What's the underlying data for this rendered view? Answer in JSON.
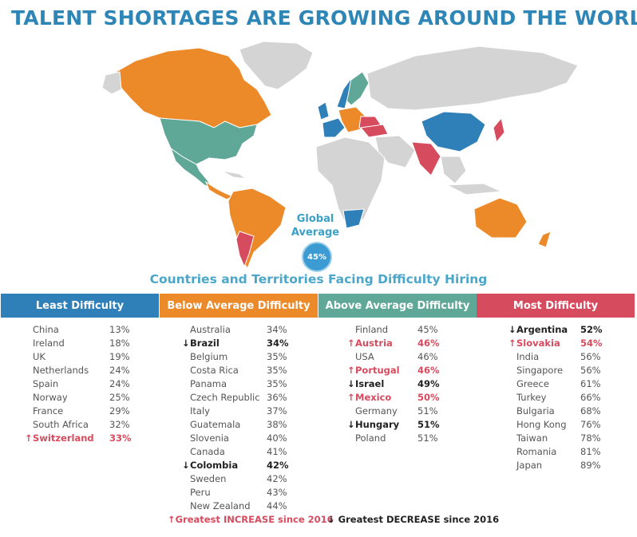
{
  "title": "TALENT SHORTAGES ARE GROWING AROUND THE WORLD",
  "global": {
    "line1": "Global",
    "line2": "Average",
    "value": "45%"
  },
  "subtitle": "Countries and Territories Facing Difficulty Hiring",
  "colors": {
    "least": "#2f7fb8",
    "below": "#ec8a2a",
    "above": "#5fa797",
    "most": "#d64b5e",
    "land": "#d4d4d4"
  },
  "columns": [
    {
      "header": "Least Difficulty",
      "rows": [
        {
          "name": "China",
          "value": "13%"
        },
        {
          "name": "Ireland",
          "value": "18%"
        },
        {
          "name": "UK",
          "value": "19%"
        },
        {
          "name": "Netherlands",
          "value": "24%"
        },
        {
          "name": "Spain",
          "value": "24%"
        },
        {
          "name": "Norway",
          "value": "25%"
        },
        {
          "name": "France",
          "value": "29%"
        },
        {
          "name": "South Africa",
          "value": "32%"
        },
        {
          "name": "Switzerland",
          "value": "33%",
          "change": "increase"
        }
      ]
    },
    {
      "header": "Below Average Difficulty",
      "rows": [
        {
          "name": "Australia",
          "value": "34%"
        },
        {
          "name": "Brazil",
          "value": "34%",
          "change": "decrease"
        },
        {
          "name": "Belgium",
          "value": "35%"
        },
        {
          "name": "Costa Rica",
          "value": "35%"
        },
        {
          "name": "Panama",
          "value": "35%"
        },
        {
          "name": "Czech Republic",
          "value": "36%"
        },
        {
          "name": "Italy",
          "value": "37%"
        },
        {
          "name": "Guatemala",
          "value": "38%"
        },
        {
          "name": "Slovenia",
          "value": "40%"
        },
        {
          "name": "Canada",
          "value": "41%"
        },
        {
          "name": "Colombia",
          "value": "42%",
          "change": "decrease"
        },
        {
          "name": "Sweden",
          "value": "42%"
        },
        {
          "name": "Peru",
          "value": "43%"
        },
        {
          "name": "New Zealand",
          "value": "44%"
        }
      ]
    },
    {
      "header": "Above Average Difficulty",
      "rows": [
        {
          "name": "Finland",
          "value": "45%"
        },
        {
          "name": "Austria",
          "value": "46%",
          "change": "increase"
        },
        {
          "name": "USA",
          "value": "46%"
        },
        {
          "name": "Portugal",
          "value": "46%",
          "change": "increase"
        },
        {
          "name": "Israel",
          "value": "49%",
          "change": "decrease"
        },
        {
          "name": "Mexico",
          "value": "50%",
          "change": "increase"
        },
        {
          "name": "Germany",
          "value": "51%"
        },
        {
          "name": "Hungary",
          "value": "51%",
          "change": "decrease"
        },
        {
          "name": "Poland",
          "value": "51%"
        }
      ]
    },
    {
      "header": "Most Difficulty",
      "rows": [
        {
          "name": "Argentina",
          "value": "52%",
          "change": "decrease"
        },
        {
          "name": "Slovakia",
          "value": "54%",
          "change": "increase"
        },
        {
          "name": "India",
          "value": "56%"
        },
        {
          "name": "Singapore",
          "value": "56%"
        },
        {
          "name": "Greece",
          "value": "61%"
        },
        {
          "name": "Turkey",
          "value": "66%"
        },
        {
          "name": "Bulgaria",
          "value": "68%"
        },
        {
          "name": "Hong Kong",
          "value": "76%"
        },
        {
          "name": "Taiwan",
          "value": "78%"
        },
        {
          "name": "Romania",
          "value": "81%"
        },
        {
          "name": "Japan",
          "value": "89%"
        }
      ]
    }
  ],
  "legend": {
    "increase": "Greatest INCREASE since 2016",
    "decrease": "Greatest DECREASE since 2016"
  },
  "arrows": {
    "up": "↑",
    "down": "↓"
  }
}
